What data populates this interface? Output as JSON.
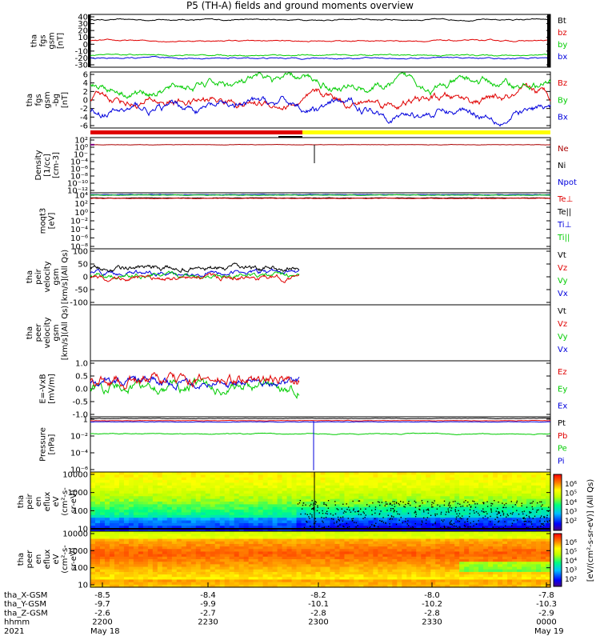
{
  "title": "P5 (TH-A) fields and ground moments overview",
  "colors": {
    "black": "#000000",
    "red": "#e00000",
    "green": "#00cc00",
    "blue": "#0000dd",
    "yellow": "#ffff00",
    "dark_red": "#aa0000"
  },
  "chart_data": [
    {
      "type": "line",
      "title": "tha fgs gsm [nT]",
      "ylabel": [
        "tha",
        "fgs",
        "gsm",
        "[nT]"
      ],
      "yticks": [
        "40",
        "30",
        "20",
        "10",
        "0",
        "-10",
        "-20",
        "-30"
      ],
      "ylim": [
        -30,
        40
      ],
      "series": [
        {
          "name": "Bt",
          "color": "#000000",
          "approx": 33
        },
        {
          "name": "bz",
          "color": "#e00000",
          "approx": 5
        },
        {
          "name": "by",
          "color": "#00cc00",
          "approx": -14
        },
        {
          "name": "bx",
          "color": "#0000dd",
          "approx": -18
        }
      ]
    },
    {
      "type": "line",
      "title": "tha fgs gsm -bg [nT]",
      "ylabel": [
        "tha",
        "fgs",
        "gsm",
        "-bg",
        "[nT]"
      ],
      "yticks": [
        "6",
        "4",
        "2",
        "0",
        "-2",
        "-4",
        "-6"
      ],
      "ylim": [
        -6,
        8
      ],
      "series": [
        {
          "name": "Bz",
          "color": "#e00000",
          "approx": 0.5
        },
        {
          "name": "By",
          "color": "#00cc00",
          "approx": 4.5
        },
        {
          "name": "Bx",
          "color": "#0000dd",
          "approx": -1.5
        }
      ]
    },
    {
      "type": "line",
      "title": "Density [1/cc] [cm-3]",
      "ylabel": [
        "Density",
        "[1/cc]",
        "[cm-3]"
      ],
      "yticks": [
        "10²",
        "10⁰",
        "10⁻⁲",
        "10⁻⁴",
        "10⁻⁶",
        "10⁻⁸",
        "10⁻¹⁰",
        "10⁻¹²"
      ],
      "ylim": [
        -12,
        2
      ],
      "log": true,
      "series": [
        {
          "name": "Ne",
          "color": "#aa0000"
        },
        {
          "name": "Ni",
          "color": "#000000"
        },
        {
          "name": "Npot",
          "color": "#0000dd"
        }
      ]
    },
    {
      "type": "line",
      "title": "moqt3 [eV]",
      "ylabel": [
        "moqt3",
        "[eV]"
      ],
      "yticks": [
        "10⁴",
        "10²",
        "10⁰",
        "10⁻²",
        "10⁻⁴",
        "10⁻⁶",
        "10⁻⁸"
      ],
      "ylim": [
        -8,
        4
      ],
      "log": true,
      "series": [
        {
          "name": "Te⊥",
          "color": "#e00000"
        },
        {
          "name": "Te||",
          "color": "#000000"
        },
        {
          "name": "Ti⊥",
          "color": "#0000dd"
        },
        {
          "name": "Ti||",
          "color": "#00cc00"
        }
      ]
    },
    {
      "type": "line",
      "title": "tha peir velocity gsm (All Qs) [km/s]",
      "ylabel": [
        "tha",
        "peir",
        "velocity",
        "gsm",
        "[km/s](All Qs)"
      ],
      "yticks": [
        "100",
        "50",
        "0",
        "-50",
        "-100"
      ],
      "ylim": [
        -100,
        100
      ],
      "series": [
        {
          "name": "Vt",
          "color": "#000000"
        },
        {
          "name": "Vz",
          "color": "#e00000"
        },
        {
          "name": "Vy",
          "color": "#00cc00"
        },
        {
          "name": "Vx",
          "color": "#0000dd"
        }
      ]
    },
    {
      "type": "line",
      "title": "tha peer velocity gsm (All Qs) [km/s]",
      "ylabel": [
        "tha",
        "peer",
        "velocity",
        "gsm",
        "[km/s](All Qs)"
      ],
      "yticks": [],
      "ylim": [
        0,
        1
      ],
      "series": [
        {
          "name": "Vt",
          "color": "#000000"
        },
        {
          "name": "Vz",
          "color": "#e00000"
        },
        {
          "name": "Vy",
          "color": "#00cc00"
        },
        {
          "name": "Vx",
          "color": "#0000dd"
        }
      ]
    },
    {
      "type": "line",
      "title": "E=-VxB [mV/m]",
      "ylabel": [
        "E=-VxB",
        "[mV/m]"
      ],
      "yticks": [
        "1.0",
        "0.5",
        "0.0",
        "-0.5",
        "-1.0"
      ],
      "ylim": [
        -1.2,
        1.2
      ],
      "series": [
        {
          "name": "Ez",
          "color": "#e00000"
        },
        {
          "name": "Ey",
          "color": "#00cc00"
        },
        {
          "name": "Ex",
          "color": "#0000dd"
        }
      ]
    },
    {
      "type": "line",
      "title": "Pressure [nPa]",
      "ylabel": [
        "Pressure",
        "[nPa]"
      ],
      "yticks": [
        "1",
        "10⁻²",
        "10⁻⁴",
        "10⁻⁶"
      ],
      "ylim": [
        -6,
        0.5
      ],
      "log": true,
      "series": [
        {
          "name": "Pt",
          "color": "#000000"
        },
        {
          "name": "Pb",
          "color": "#e00000"
        },
        {
          "name": "Pe",
          "color": "#00cc00"
        },
        {
          "name": "Pi",
          "color": "#0000dd"
        }
      ]
    },
    {
      "type": "heatmap",
      "title": "tha peir en eflux eV (cm^2-s-sr-eV)",
      "ylabel": [
        "tha",
        "peir",
        "en",
        "eflux",
        "eV",
        "(cm²-s-",
        "sr-eV)"
      ],
      "yticks": [
        "10000",
        "1000",
        "100",
        "10"
      ],
      "ylim": [
        5,
        20000
      ]
    },
    {
      "type": "heatmap",
      "title": "tha peer en eflux eV (cm^2-s-sr-eV)",
      "ylabel": [
        "tha",
        "peer",
        "en",
        "eflux",
        "eV",
        "(cm²-s-",
        "sr-eV)"
      ],
      "yticks": [
        "10000",
        "1000",
        "100",
        "10"
      ],
      "ylim": [
        5,
        20000
      ]
    }
  ],
  "colorbar": {
    "label": "[eV/(cm²-s-sr-eV)] (All Qs)",
    "ticks_top": [
      "10⁶",
      "10⁵",
      "10⁴",
      "10³",
      "10²"
    ],
    "ticks_bottom": [
      "10⁶",
      "10⁵",
      "10⁴",
      "10³",
      "10²"
    ]
  },
  "xaxis": {
    "rows": [
      {
        "label": "tha_X-GSM",
        "values": [
          "-8.5",
          "-8.4",
          "-8.2",
          "-8.0",
          "-7.8"
        ]
      },
      {
        "label": "tha_Y-GSM",
        "values": [
          "-9.7",
          "-9.9",
          "-10.1",
          "-10.2",
          "-10.3"
        ]
      },
      {
        "label": "tha_Z-GSM",
        "values": [
          "-2.6",
          "-2.7",
          "-2.8",
          "-2.8",
          "-2.9"
        ]
      },
      {
        "label": "hhmm",
        "values": [
          "2200",
          "2230",
          "2300",
          "2330",
          "0000"
        ]
      },
      {
        "label": "2021",
        "values": [
          "May 18",
          "",
          "",
          "",
          "May 19"
        ]
      }
    ]
  }
}
